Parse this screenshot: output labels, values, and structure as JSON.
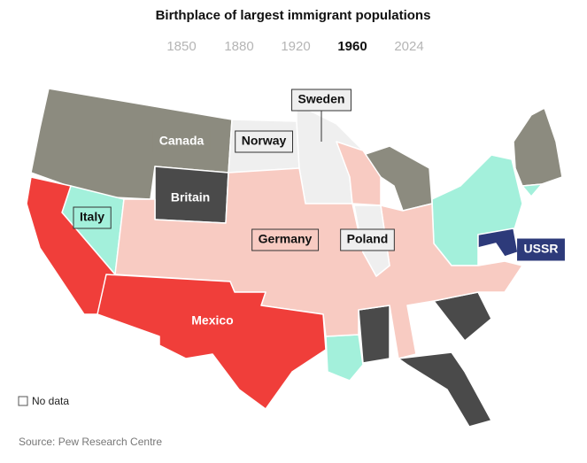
{
  "header": {
    "title": "Birthplace of largest immigrant populations",
    "years": [
      "1850",
      "1880",
      "1920",
      "1960",
      "2024"
    ],
    "active_year": "1960"
  },
  "map": {
    "regions": [
      {
        "name": "Canada",
        "color": "#8c8b7f"
      },
      {
        "name": "Norway",
        "color": "#efefef"
      },
      {
        "name": "Sweden",
        "color": "#efefef"
      },
      {
        "name": "Britain",
        "color": "#4a4a4a"
      },
      {
        "name": "Italy",
        "color": "#a3f0db"
      },
      {
        "name": "Germany",
        "color": "#f8cbc2"
      },
      {
        "name": "Poland",
        "color": "#efefef"
      },
      {
        "name": "USSR",
        "color": "#2d3a7a"
      },
      {
        "name": "Mexico",
        "color": "#f03e3a"
      }
    ]
  },
  "legend": {
    "label": "No data"
  },
  "footer": {
    "source": "Source: Pew Research Centre"
  }
}
